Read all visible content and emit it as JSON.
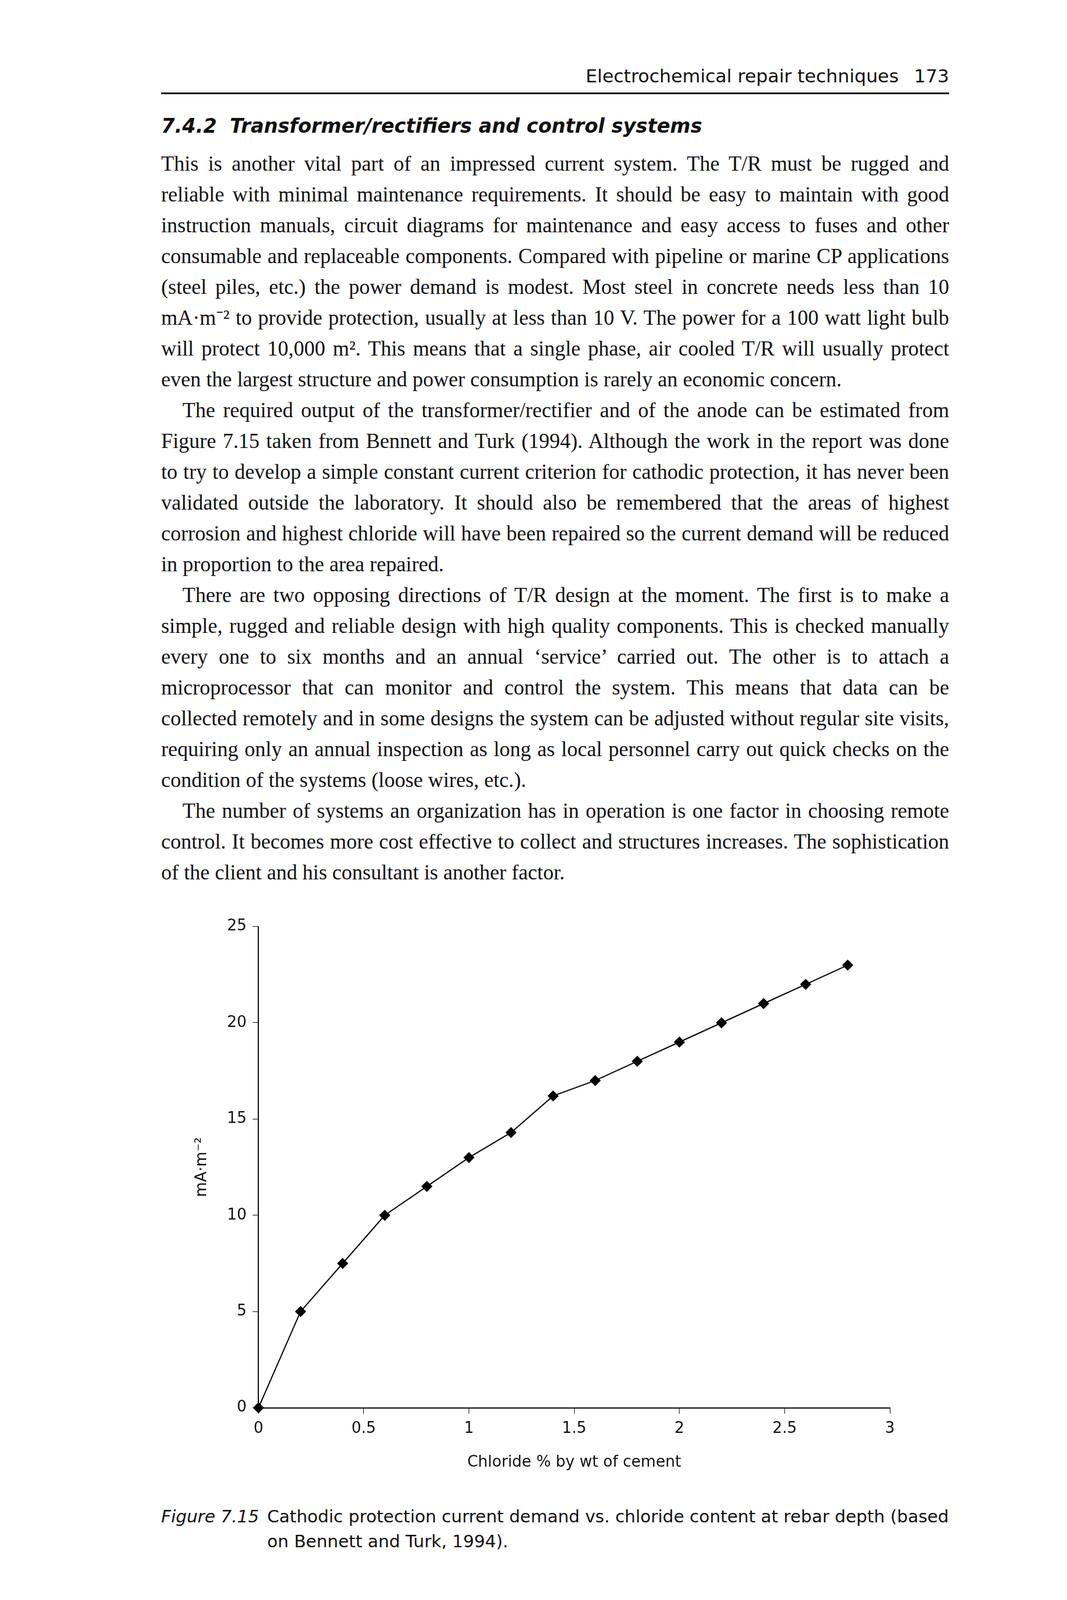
{
  "header": {
    "title": "Electrochemical repair techniques",
    "page_number": "173"
  },
  "section": {
    "number": "7.4.2",
    "title": "Transformer/rectifiers and control systems"
  },
  "paragraphs": [
    "This is another vital part of an impressed current system. The T/R must be rugged and reliable with minimal maintenance requirements. It should be easy to maintain with good instruction manuals, circuit diagrams for maintenance and easy access to fuses and other consumable and replaceable components. Compared with pipeline or marine CP applications (steel piles, etc.) the power demand is modest. Most steel in concrete needs less than 10 mA·m⁻² to provide protection, usually at less than 10 V. The power for a 100 watt light bulb will protect 10,000 m². This means that a single phase, air cooled T/R will usually protect even the largest structure and power consumption is rarely an economic concern.",
    "The required output of the transformer/rectifier and of the anode can be estimated from Figure 7.15 taken from Bennett and Turk (1994). Although the work in the report was done to try to develop a simple constant current criterion for cathodic protection, it has never been validated outside the laboratory. It should also be remembered that the areas of highest corrosion and highest chloride will have been repaired so the current demand will be reduced in proportion to the area repaired.",
    "There are two opposing directions of T/R design at the moment. The first is to make a simple, rugged and reliable design with high quality components. This is checked manually every one to six months and an annual ‘service’ carried out. The other is to attach a microprocessor that can monitor and control the system. This means that data can be collected remotely and in some designs the system can be adjusted without regular site visits, requiring only an annual inspection as long as local personnel carry out quick checks on the condition of the systems (loose wires, etc.).",
    "The number of systems an organization has in operation is one factor in choosing remote control. It becomes more cost effective to collect and structures increases. The sophistication of the client and his consultant is another factor."
  ],
  "caption": {
    "label": "Figure 7.15",
    "text": "Cathodic protection current demand vs. chloride content at rebar depth (based on Bennett and Turk, 1994)."
  },
  "chart_data": {
    "type": "line",
    "x_label": "Chloride % by wt of cement",
    "y_label": "mA·m⁻²",
    "x": [
      0,
      0.2,
      0.4,
      0.6,
      0.8,
      1.0,
      1.2,
      1.4,
      1.6,
      1.8,
      2.0,
      2.2,
      2.4,
      2.6,
      2.8
    ],
    "values": [
      0,
      5,
      7.5,
      10,
      11.5,
      13,
      14.3,
      16.2,
      17,
      18,
      19,
      20,
      21,
      22,
      23
    ],
    "color": "#000000",
    "marker": "diamond",
    "xlim": [
      0,
      3
    ],
    "xticks": [
      0,
      0.5,
      1,
      1.5,
      2,
      2.5,
      3
    ],
    "ylim": [
      0,
      25
    ],
    "yticks": [
      0,
      5,
      10,
      15,
      20,
      25
    ],
    "grid": false
  }
}
